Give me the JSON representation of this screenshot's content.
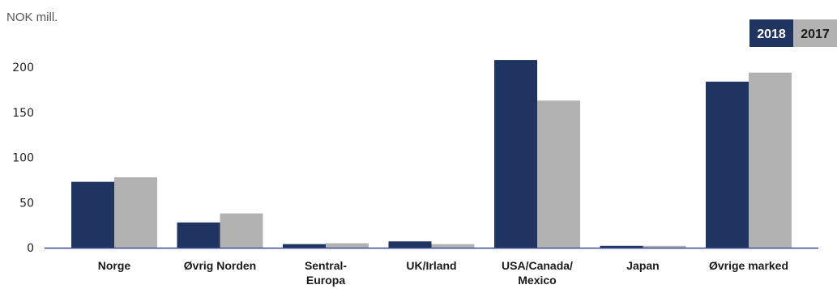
{
  "chart_data": {
    "type": "bar",
    "unit_label": "NOK mill.",
    "title": "",
    "xlabel": "",
    "ylabel": "",
    "categories": [
      [
        "Norge"
      ],
      [
        "Øvrig Norden"
      ],
      [
        "Sentral-",
        "Europa"
      ],
      [
        "UK/Irland"
      ],
      [
        "USA/Canada/",
        "Mexico"
      ],
      [
        "Japan"
      ],
      [
        "Øvrige marked"
      ]
    ],
    "series": [
      {
        "name": "2018",
        "color": "#1f3461",
        "values": [
          73,
          28,
          4,
          7,
          208,
          2,
          184
        ]
      },
      {
        "name": "2017",
        "color": "#b2b2b2",
        "values": [
          78,
          38,
          5,
          4,
          163,
          2,
          194
        ]
      }
    ],
    "ylim": [
      0,
      200
    ],
    "yticks": [
      0,
      50,
      100,
      150,
      200
    ],
    "legend_position": "top-right",
    "grid": false,
    "axis_color": "#3a4a9a"
  }
}
